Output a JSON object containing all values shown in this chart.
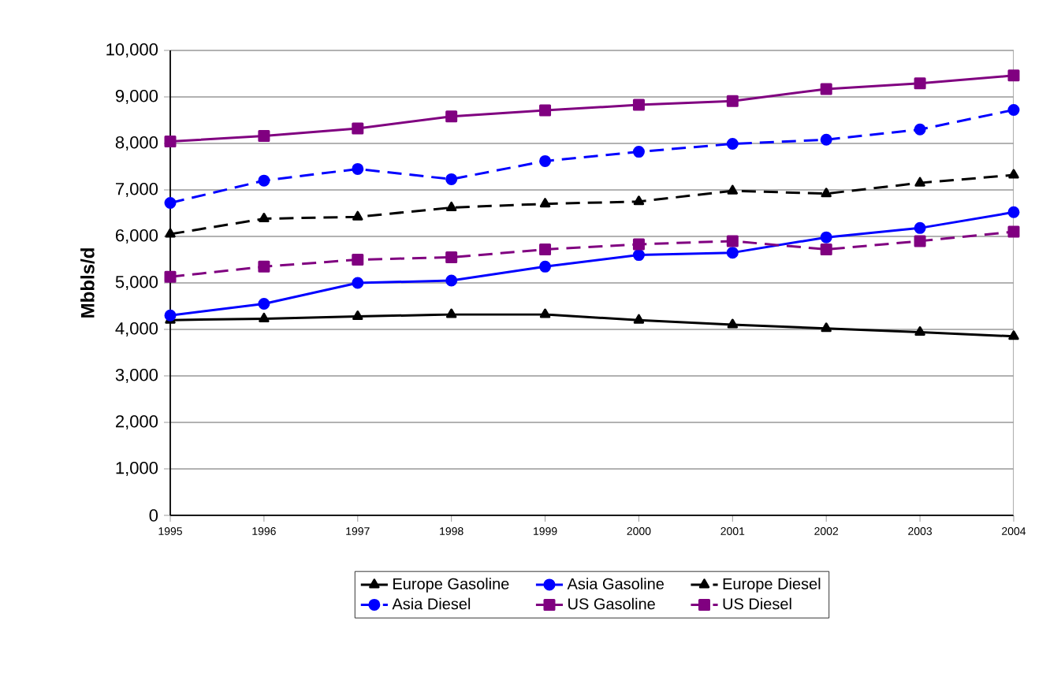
{
  "chart_data": {
    "type": "line",
    "ylabel": "Mbbls/d",
    "x": [
      1995,
      1996,
      1997,
      1998,
      1999,
      2000,
      2001,
      2002,
      2003,
      2004
    ],
    "xlim": [
      1995,
      2004
    ],
    "xticks": [
      1995,
      1996,
      1997,
      1998,
      1999,
      2000,
      2001,
      2002,
      2003,
      2004
    ],
    "ylim": [
      0,
      10000
    ],
    "yticks": [
      {
        "value": 0,
        "label": "0"
      },
      {
        "value": 1000,
        "label": "1,000"
      },
      {
        "value": 2000,
        "label": "2,000"
      },
      {
        "value": 3000,
        "label": "3,000"
      },
      {
        "value": 4000,
        "label": "4,000"
      },
      {
        "value": 5000,
        "label": "5,000"
      },
      {
        "value": 6000,
        "label": "6,000"
      },
      {
        "value": 7000,
        "label": "7,000"
      },
      {
        "value": 8000,
        "label": "8,000"
      },
      {
        "value": 9000,
        "label": "9,000"
      },
      {
        "value": 10000,
        "label": "10,000"
      }
    ],
    "grid": "y",
    "legend": "bottom",
    "series": [
      {
        "name": "Europe Gasoline",
        "color": "#000000",
        "marker": "triangle",
        "line_style": "solid",
        "values": [
          4200,
          4230,
          4280,
          4320,
          4320,
          4200,
          4100,
          4020,
          3940,
          3850
        ]
      },
      {
        "name": "Asia Gasoline",
        "color": "#0000ff",
        "marker": "circle",
        "line_style": "solid",
        "values": [
          4300,
          4550,
          5000,
          5050,
          5350,
          5600,
          5650,
          5980,
          6180,
          6520
        ]
      },
      {
        "name": "Europe Diesel",
        "color": "#000000",
        "marker": "triangle",
        "line_style": "dashed",
        "values": [
          6050,
          6380,
          6420,
          6620,
          6700,
          6750,
          6980,
          6920,
          7150,
          7320
        ]
      },
      {
        "name": "Asia Diesel",
        "color": "#0000ff",
        "marker": "circle",
        "line_style": "dashed",
        "values": [
          6720,
          7200,
          7450,
          7230,
          7620,
          7820,
          7990,
          8080,
          8300,
          8720
        ]
      },
      {
        "name": "US Gasoline",
        "color": "#800080",
        "marker": "square",
        "line_style": "solid",
        "values": [
          8040,
          8160,
          8320,
          8580,
          8710,
          8830,
          8910,
          9170,
          9290,
          9460
        ]
      },
      {
        "name": "US Diesel",
        "color": "#800080",
        "marker": "square",
        "line_style": "dashed",
        "values": [
          5130,
          5350,
          5500,
          5550,
          5720,
          5830,
          5900,
          5720,
          5900,
          6100
        ]
      }
    ]
  }
}
